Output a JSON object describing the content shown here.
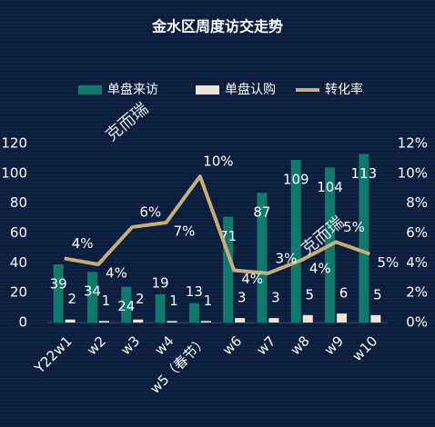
{
  "chart_data": {
    "type": "bar-line",
    "title": "金水区周度访交走势",
    "categories": [
      "Y22w1",
      "w2",
      "w3",
      "w4",
      "w5（春节）",
      "w6",
      "w7",
      "w8",
      "w9",
      "w10"
    ],
    "series": [
      {
        "name": "单盘来访",
        "color": "#0f7a6c",
        "values": [
          39,
          34,
          24,
          19,
          13,
          71,
          87,
          109,
          104,
          113
        ]
      },
      {
        "name": "单盘认购",
        "color": "#eee4d3",
        "values": [
          2,
          1,
          2,
          1,
          1,
          3,
          3,
          5,
          6,
          5
        ]
      },
      {
        "name": "转化率",
        "color": "#c9ad78",
        "axis": "y2",
        "values": [
          4.3,
          3.9,
          6.4,
          6.7,
          9.8,
          3.5,
          3.3,
          4.2,
          5.4,
          4.6
        ],
        "value_labels": [
          "4%",
          "4%",
          "6%",
          "7%",
          "10%",
          "4%",
          "3%",
          "4%",
          "5%",
          "5%"
        ]
      }
    ],
    "ylim": [
      0,
      120
    ],
    "yticks": [
      0,
      20,
      40,
      60,
      80,
      100,
      120
    ],
    "y2lim": [
      0,
      12
    ],
    "y2ticks": [
      {
        "value": 0,
        "label": "0%"
      },
      {
        "value": 2,
        "label": "2%"
      },
      {
        "value": 4,
        "label": "4%"
      },
      {
        "value": 6,
        "label": "6%"
      },
      {
        "value": 8,
        "label": "8%"
      },
      {
        "value": 10,
        "label": "10%"
      },
      {
        "value": 12,
        "label": "12%"
      }
    ],
    "watermark": "克而瑞"
  }
}
